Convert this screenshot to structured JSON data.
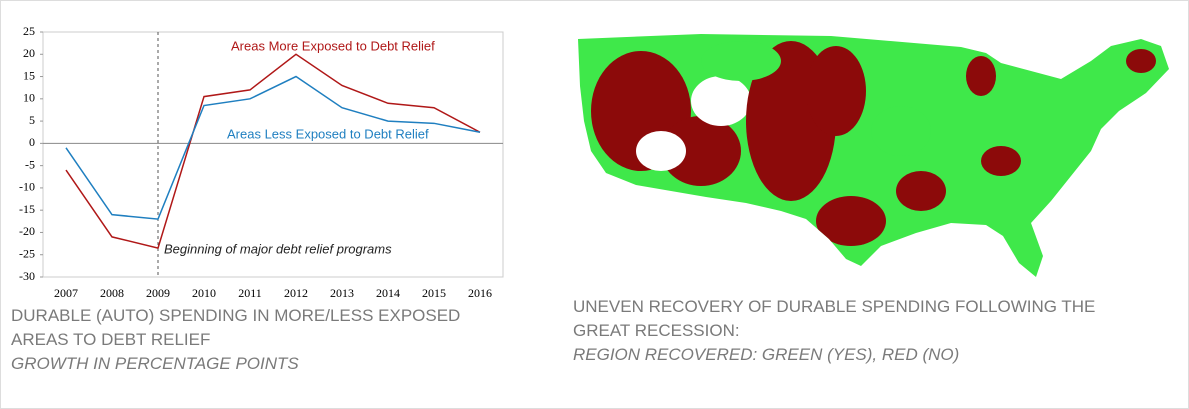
{
  "chart_data": {
    "type": "line",
    "categories": [
      "2007",
      "2008",
      "2009",
      "2010",
      "2011",
      "2012",
      "2013",
      "2014",
      "2015",
      "2016"
    ],
    "series": [
      {
        "name": "Areas More Exposed to Debt Relief",
        "color": "#b01818",
        "values": [
          -6,
          -21,
          -23.5,
          10.5,
          12,
          20,
          13,
          9,
          8,
          2.5
        ]
      },
      {
        "name": "Areas Less Exposed to Debt Relief",
        "color": "#1f7fc0",
        "values": [
          -1,
          -16,
          -17,
          8.5,
          10,
          15,
          8,
          5,
          4.5,
          2.5
        ]
      }
    ],
    "ylim": [
      -30,
      25
    ],
    "yticks": [
      -30,
      -25,
      -20,
      -15,
      -10,
      -5,
      0,
      5,
      10,
      15,
      20,
      25
    ],
    "annotations": [
      {
        "text": "Beginning of major debt relief programs",
        "x": "2009"
      }
    ],
    "caption": "DURABLE (AUTO) SPENDING IN MORE/LESS EXPOSED AREAS TO DEBT RELIEF",
    "subcaption": "GROWTH IN PERCENTAGE POINTS"
  },
  "map_panel": {
    "caption": "UNEVEN RECOVERY OF DURABLE SPENDING FOLLOWING THE GREAT RECESSION:",
    "subcaption": "REGION RECOVERED: GREEN (YES), RED (NO)"
  }
}
